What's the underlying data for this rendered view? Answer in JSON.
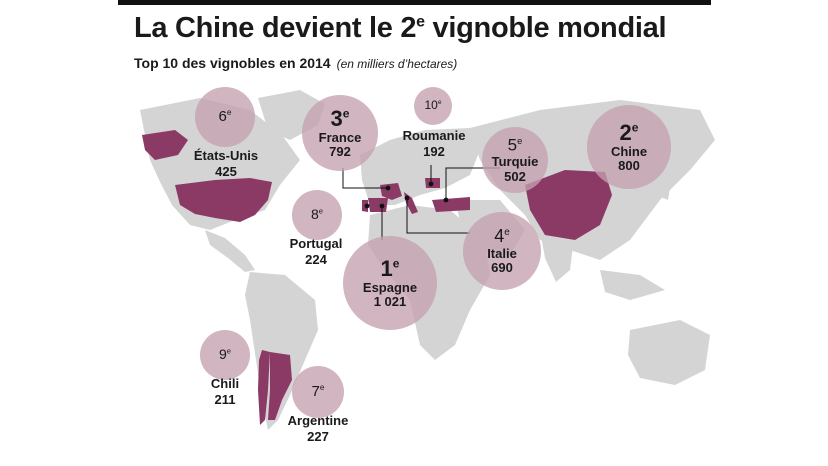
{
  "title": "La Chine devient le 2",
  "title_sup": "e",
  "title_rest": " vignoble mondial",
  "subtitle": "Top 10 des vignobles en 2014",
  "unit": "(en milliers d’hectares)",
  "colors": {
    "highlight": "#8b3a66",
    "bubble": "#c4a0b0",
    "land": "#d4d4d4"
  },
  "countries": [
    {
      "rank": "1",
      "sup": "e",
      "name": "Espagne",
      "value": "1 021"
    },
    {
      "rank": "2",
      "sup": "e",
      "name": "Chine",
      "value": "800"
    },
    {
      "rank": "3",
      "sup": "e",
      "name": "France",
      "value": "792"
    },
    {
      "rank": "4",
      "sup": "e",
      "name": "Italie",
      "value": "690"
    },
    {
      "rank": "5",
      "sup": "e",
      "name": "Turquie",
      "value": "502"
    },
    {
      "rank": "6",
      "sup": "e",
      "name": "États-Unis",
      "value": "425"
    },
    {
      "rank": "7",
      "sup": "e",
      "name": "Argentine",
      "value": "227"
    },
    {
      "rank": "8",
      "sup": "e",
      "name": "Portugal",
      "value": "224"
    },
    {
      "rank": "9",
      "sup": "e",
      "name": "Chili",
      "value": "211"
    },
    {
      "rank": "10",
      "sup": "e",
      "name": "Roumanie",
      "value": "192"
    }
  ]
}
